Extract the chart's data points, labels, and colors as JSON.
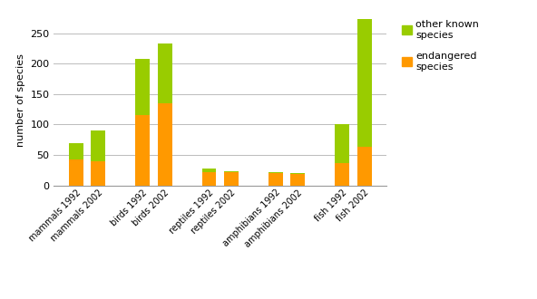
{
  "categories": [
    "mammals 1992",
    "mammals 2002",
    " ",
    "birds 1992",
    "birds 2002",
    "  ",
    "reptiles 1992",
    "reptiles 2002",
    "   ",
    "amphibians 1992",
    "amphibians 2002",
    "    ",
    "fish 1992",
    "fish 2002"
  ],
  "endangered": [
    42,
    40,
    0,
    115,
    135,
    0,
    22,
    22,
    0,
    20,
    19,
    0,
    37,
    63
  ],
  "other_known": [
    27,
    50,
    0,
    93,
    98,
    0,
    5,
    1,
    0,
    1,
    1,
    0,
    63,
    210
  ],
  "spacer_indices": [
    2,
    5,
    8,
    11
  ],
  "color_endangered": "#FF9900",
  "color_other": "#99CC00",
  "ylabel": "number of species",
  "ylim": [
    0,
    280
  ],
  "yticks": [
    0,
    50,
    100,
    150,
    200,
    250
  ],
  "legend_other": "other known\nspecies",
  "legend_endangered": "endangered\nspecies",
  "bg_color": "#FFFFFF",
  "grid_color": "#BBBBBB",
  "bar_width": 0.65,
  "label_fontsize": 7,
  "ylabel_fontsize": 8,
  "ytick_fontsize": 8
}
